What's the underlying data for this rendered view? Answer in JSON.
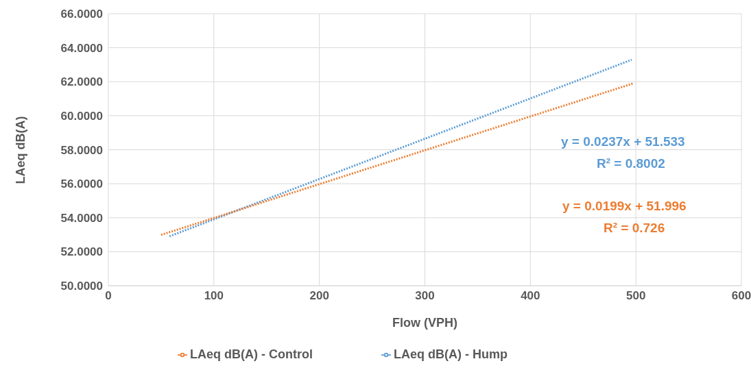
{
  "chart_data": {
    "type": "line",
    "xlabel": "Flow (VPH)",
    "ylabel": "LAeq dB(A)",
    "series": [
      {
        "name": "LAeq dB(A) - Hump",
        "color": "#5b9bd5",
        "x": [
          58,
          496
        ],
        "values": [
          52.91,
          63.29
        ]
      },
      {
        "name": "LAeq dB(A) - Control",
        "color": "#ed7d31",
        "x": [
          50,
          497
        ],
        "values": [
          52.99,
          61.89
        ]
      }
    ],
    "xlim": [
      0,
      600
    ],
    "xticks": [
      0,
      100,
      200,
      300,
      400,
      500,
      600
    ],
    "ylim": [
      50,
      66
    ],
    "yticks": [
      {
        "value": 50,
        "label": "50.0000"
      },
      {
        "value": 52,
        "label": "52.0000"
      },
      {
        "value": 54,
        "label": "54.0000"
      },
      {
        "value": 56,
        "label": "56.0000"
      },
      {
        "value": 58,
        "label": "58.0000"
      },
      {
        "value": 60,
        "label": "60.0000"
      },
      {
        "value": 62,
        "label": "62.0000"
      },
      {
        "value": 64,
        "label": "64.0000"
      },
      {
        "value": 66,
        "label": "66.0000"
      }
    ],
    "annotations": [
      "y = 0.0237x + 51.533",
      "R² = 0.8002",
      "y = 0.0199x + 51.996",
      "R² = 0.726"
    ],
    "grid": true,
    "legend": "bottom",
    "marker": "none",
    "line_style": "dotted"
  }
}
